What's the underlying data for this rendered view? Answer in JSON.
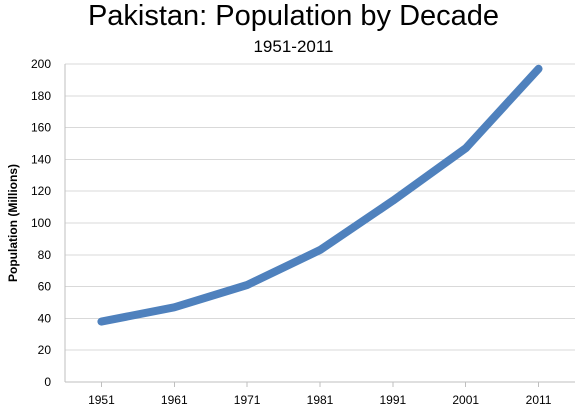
{
  "chart_data": {
    "type": "line",
    "title": "Pakistan: Population by Decade",
    "subtitle": "1951-2011",
    "xlabel": "",
    "ylabel": "Population (Millions)",
    "x": [
      "1951",
      "1961",
      "1971",
      "1981",
      "1991",
      "2001",
      "2011"
    ],
    "series": [
      {
        "values": [
          38,
          47,
          61,
          83,
          114,
          147,
          197
        ]
      }
    ],
    "ylim": [
      0,
      200
    ],
    "yticks": [
      0,
      20,
      40,
      60,
      80,
      100,
      120,
      140,
      160,
      180,
      200
    ],
    "ytick_labels": [
      "0",
      "20",
      "40",
      "60",
      "80",
      "100",
      "120",
      "140",
      "160",
      "180",
      "200"
    ],
    "grid": true,
    "legend": "none",
    "line_color": "#4f81bd",
    "grid_color": "#d9d9d9"
  }
}
